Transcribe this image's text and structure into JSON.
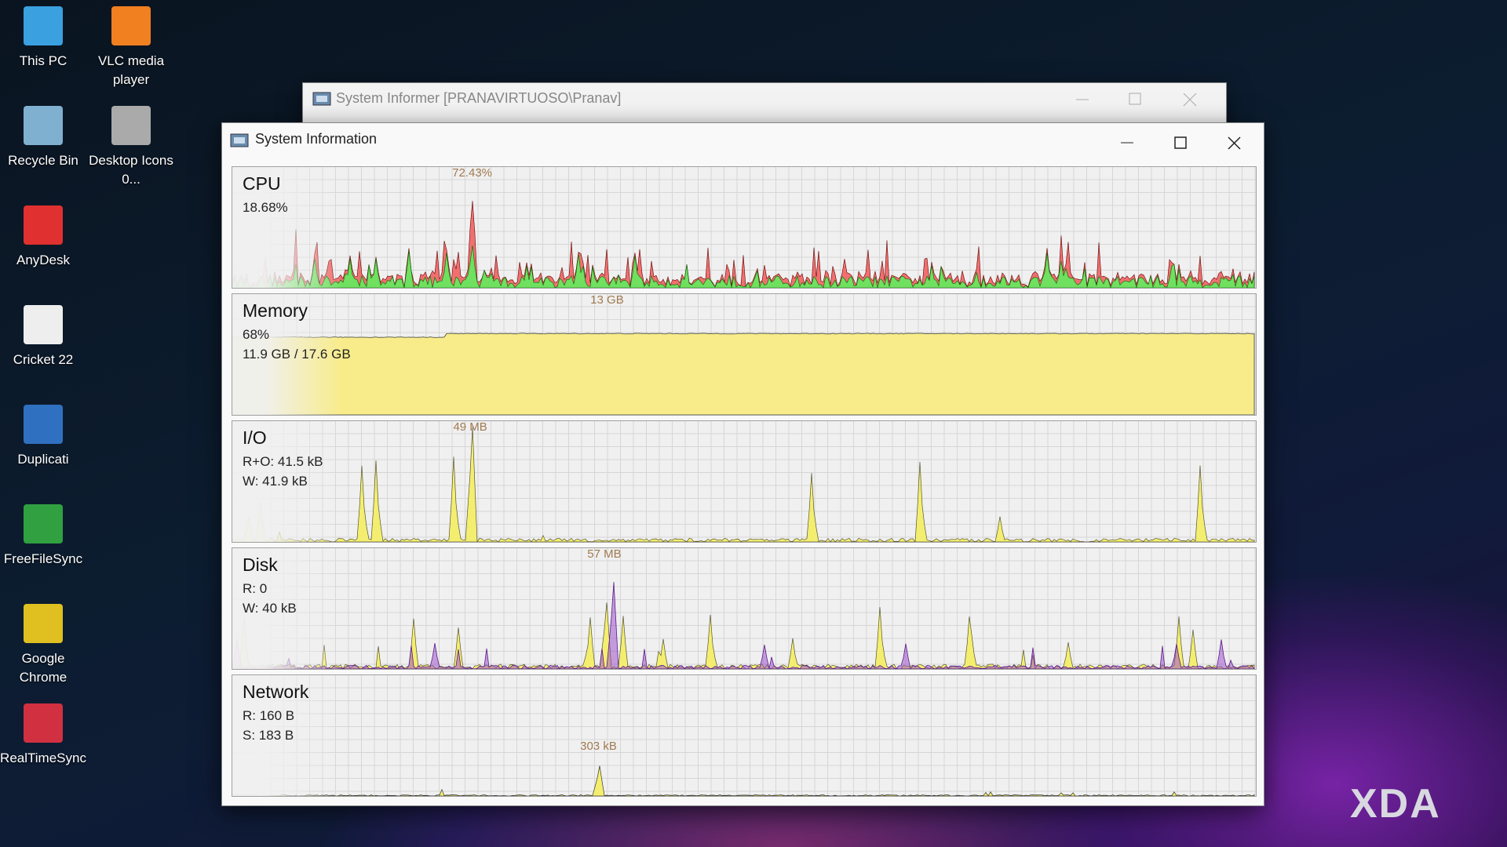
{
  "desktop_icons": [
    {
      "label": "This PC"
    },
    {
      "label": "VLC media player"
    },
    {
      "label": "Recycle Bin"
    },
    {
      "label": "Desktop Icons 0..."
    },
    {
      "label": "AnyDesk"
    },
    {
      "label": "Cricket 22"
    },
    {
      "label": "Duplicati"
    },
    {
      "label": "FreeFileSync"
    },
    {
      "label": "Google Chrome"
    },
    {
      "label": "RealTimeSync"
    }
  ],
  "background_window": {
    "title": "System Informer [PRANAVIRTUOSO\\Pranav]"
  },
  "window": {
    "title": "System Information"
  },
  "panels": [
    {
      "title": "CPU",
      "lines": [
        "18.68%"
      ],
      "peak": "72.43%"
    },
    {
      "title": "Memory",
      "lines": [
        "68%",
        "11.9 GB / 17.6 GB"
      ],
      "peak": "13 GB"
    },
    {
      "title": "I/O",
      "lines": [
        "R+O: 41.5 kB",
        "W: 41.9 kB"
      ],
      "peak": "49 MB"
    },
    {
      "title": "Disk",
      "lines": [
        "R: 0",
        "W: 40 kB"
      ],
      "peak": "57 MB"
    },
    {
      "title": "Network",
      "lines": [
        "R: 160 B",
        "S: 183 B"
      ],
      "peak": "303 kB"
    }
  ],
  "watermark": "XDA"
}
